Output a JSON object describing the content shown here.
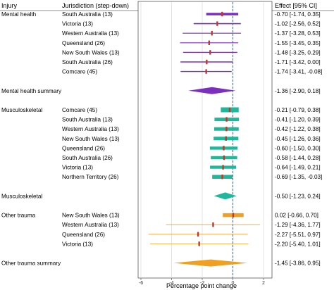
{
  "chart_data": {
    "type": "forest",
    "xlabel": "Percentage point change",
    "xlim": [
      -6,
      2
    ],
    "xticks": [
      -6,
      -4,
      -2,
      0,
      2
    ],
    "grid": true,
    "reference_line": 0,
    "headers": {
      "group": "Injury",
      "jurisdiction": "Jurisdiction (step-down)",
      "effect": "Effect [95% CI]"
    },
    "colors": {
      "mental": "#7b2fbe",
      "musculoskeletal": "#1fb89a",
      "trauma": "#f0a020",
      "point": "#c0392b",
      "reference": "#335577",
      "grid": "#d8d8d8"
    },
    "rows": [
      {
        "row": 0,
        "group": "Mental health",
        "jurisdiction": "South Australia (13)",
        "effect": -0.7,
        "lo": -1.74,
        "hi": 0.35,
        "label": "-0.70 [-1.74, 0.35]",
        "color": "mental",
        "weight": 3.6
      },
      {
        "row": 1,
        "jurisdiction": "Victoria (13)",
        "effect": -1.02,
        "lo": -2.56,
        "hi": 0.52,
        "label": "-1.02 [-2.56, 0.52]",
        "color": "mental",
        "weight": 1.6
      },
      {
        "row": 2,
        "jurisdiction": "Western Australia (13)",
        "effect": -1.37,
        "lo": -3.28,
        "hi": 0.53,
        "label": "-1.37 [-3.28, 0.53]",
        "color": "mental",
        "weight": 1.2
      },
      {
        "row": 3,
        "jurisdiction": "Queensland (26)",
        "effect": -1.55,
        "lo": -3.45,
        "hi": 0.35,
        "label": "-1.55 [-3.45, 0.35]",
        "color": "mental",
        "weight": 1.2
      },
      {
        "row": 4,
        "jurisdiction": "New South Wales (13)",
        "effect": -1.48,
        "lo": -3.25,
        "hi": 0.29,
        "label": "-1.48 [-3.25, 0.29]",
        "color": "mental",
        "weight": 1.3
      },
      {
        "row": 5,
        "jurisdiction": "South Australia (26)",
        "effect": -1.71,
        "lo": -3.42,
        "hi": 0.0,
        "label": "-1.71 [-3.42, 0.00]",
        "color": "mental",
        "weight": 1.4
      },
      {
        "row": 6,
        "jurisdiction": "Comcare (45)",
        "effect": -1.74,
        "lo": -3.41,
        "hi": -0.08,
        "label": "-1.74 [-3.41, -0.08]",
        "color": "mental",
        "weight": 1.4
      },
      {
        "row": 8,
        "group": "Mental health summary",
        "summary": true,
        "effect": -1.36,
        "lo": -2.9,
        "hi": 0.18,
        "label": "-1.36 [-2.90, 0.18]",
        "color": "mental"
      },
      {
        "row": 10,
        "group": "Musculoskeletal",
        "jurisdiction": "Comcare (45)",
        "effect": -0.21,
        "lo": -0.79,
        "hi": 0.38,
        "label": "-0.21 [-0.79, 0.38]",
        "color": "musculoskeletal",
        "weight": 7
      },
      {
        "row": 11,
        "jurisdiction": "South Australia (13)",
        "effect": -0.41,
        "lo": -1.2,
        "hi": 0.39,
        "label": "-0.41 [-1.20, 0.39]",
        "color": "musculoskeletal",
        "weight": 5
      },
      {
        "row": 12,
        "jurisdiction": "Western Australia (13)",
        "effect": -0.42,
        "lo": -1.22,
        "hi": 0.38,
        "label": "-0.42 [-1.22, 0.38]",
        "color": "musculoskeletal",
        "weight": 5
      },
      {
        "row": 13,
        "jurisdiction": "New South Wales (13)",
        "effect": -0.45,
        "lo": -1.26,
        "hi": 0.36,
        "label": "-0.45 [-1.26, 0.36]",
        "color": "musculoskeletal",
        "weight": 5
      },
      {
        "row": 14,
        "jurisdiction": "Queensland (26)",
        "effect": -0.6,
        "lo": -1.5,
        "hi": 0.3,
        "label": "-0.60 [-1.50, 0.30]",
        "color": "musculoskeletal",
        "weight": 4.4
      },
      {
        "row": 15,
        "jurisdiction": "South Australia (26)",
        "effect": -0.58,
        "lo": -1.44,
        "hi": 0.28,
        "label": "-0.58 [-1.44, 0.28]",
        "color": "musculoskeletal",
        "weight": 4.4
      },
      {
        "row": 16,
        "jurisdiction": "Victoria (13)",
        "effect": -0.64,
        "lo": -1.49,
        "hi": 0.21,
        "label": "-0.64 [-1.49, 0.21]",
        "color": "musculoskeletal",
        "weight": 4.4
      },
      {
        "row": 17,
        "jurisdiction": "Northern Territory (26)",
        "effect": -0.69,
        "lo": -1.35,
        "hi": -0.03,
        "label": "-0.69 [-1.35, -0.03]",
        "color": "musculoskeletal",
        "weight": 5.5
      },
      {
        "row": 19,
        "group": "Musculoskeletal",
        "summary": true,
        "effect": -0.5,
        "lo": -1.23,
        "hi": 0.24,
        "label": "-0.50 [-1.23, 0.24]",
        "color": "musculoskeletal"
      },
      {
        "row": 21,
        "group": "Other trauma",
        "jurisdiction": "New South Wales (13)",
        "effect": 0.02,
        "lo": -0.66,
        "hi": 0.7,
        "label": "0.02 [-0.66, 0.70]",
        "color": "trauma",
        "weight": 5.5
      },
      {
        "row": 22,
        "jurisdiction": "Western Australia (13)",
        "effect": -1.29,
        "lo": -4.36,
        "hi": 1.77,
        "label": "-1.29 [-4.36, 1.77]",
        "color": "trauma",
        "weight": 0.8
      },
      {
        "row": 23,
        "jurisdiction": "Queensland (26)",
        "effect": -2.27,
        "lo": -5.51,
        "hi": 0.97,
        "label": "-2.27 [-5.51, 0.97]",
        "color": "trauma",
        "weight": 0.8
      },
      {
        "row": 24,
        "jurisdiction": "Victoria (13)",
        "effect": -2.2,
        "lo": -5.4,
        "hi": 1.01,
        "label": "-2.20 [-5.40, 1.01]",
        "color": "trauma",
        "weight": 0.8
      },
      {
        "row": 26,
        "group": "Other trauma summary",
        "summary": true,
        "effect": -1.45,
        "lo": -3.86,
        "hi": 0.95,
        "label": "-1.45 [-3.86, 0.95]",
        "color": "trauma"
      }
    ]
  }
}
